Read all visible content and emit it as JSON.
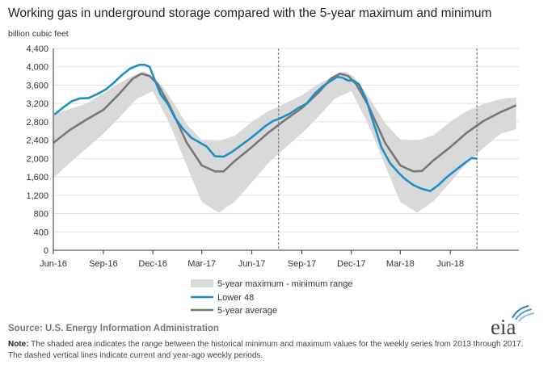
{
  "title": "Working gas in underground  storage compared with the 5-year maximum and minimum",
  "source": "Source:  U.S. Energy Information Administration",
  "note_label": "Note:",
  "note_text": " The shaded area indicates the range between the historical minimum and maximum values for the weekly series from 2013 through 2017. The dashed vertical lines indicate current and year-ago weekly periods.",
  "logo_text": "eia",
  "colors": {
    "range": "#d9d9d9",
    "lower48": "#1e8fc6",
    "avg": "#777777",
    "axis": "#333333",
    "dashed": "#888888"
  },
  "chart_data": {
    "type": "area",
    "ylabel": "billion cubic feet",
    "ylim": [
      0,
      4400
    ],
    "yticks": [
      0,
      400,
      800,
      1200,
      1600,
      2000,
      2400,
      2800,
      3200,
      3600,
      4000,
      4400
    ],
    "ytick_labels": [
      "0",
      "400",
      "800",
      "1,200",
      "1,600",
      "2,000",
      "2,400",
      "2,800",
      "3,200",
      "3,600",
      "4,000",
      "4,400"
    ],
    "xlim": [
      "2016-06-01",
      "2018-10-05"
    ],
    "xticks": [
      "2016-06-01",
      "2016-09-01",
      "2016-12-01",
      "2017-03-01",
      "2017-06-01",
      "2017-09-01",
      "2017-12-01",
      "2018-03-01",
      "2018-06-01"
    ],
    "xtick_labels": [
      "Jun-16",
      "Sep-16",
      "Dec-16",
      "Mar-17",
      "Jun-17",
      "Sep-17",
      "Dec-17",
      "Mar-18",
      "Jun-18"
    ],
    "dashed_lines": [
      "2017-07-20",
      "2018-07-20"
    ],
    "legend": [
      {
        "key": "range",
        "label": "5-year maximum - minimum range"
      },
      {
        "key": "lower48",
        "label": "Lower 48"
      },
      {
        "key": "avg",
        "label": "5-year average"
      }
    ],
    "range_max": {
      "x": [
        "2016-06-01",
        "2016-07-01",
        "2016-08-01",
        "2016-09-01",
        "2016-10-01",
        "2016-10-25",
        "2016-11-15",
        "2016-12-01",
        "2016-12-20",
        "2017-01-10",
        "2017-02-01",
        "2017-03-01",
        "2017-04-01",
        "2017-05-01",
        "2017-06-01",
        "2017-07-01",
        "2017-08-01",
        "2017-09-01",
        "2017-10-01",
        "2017-11-01",
        "2017-11-20",
        "2017-12-05",
        "2017-12-20",
        "2018-01-10",
        "2018-02-01",
        "2018-03-01",
        "2018-04-01",
        "2018-05-01",
        "2018-06-01",
        "2018-07-01",
        "2018-08-01",
        "2018-09-01",
        "2018-09-30"
      ],
      "y": [
        2960,
        3080,
        3200,
        3420,
        3650,
        3800,
        3900,
        3780,
        3560,
        3180,
        2750,
        2400,
        2380,
        2500,
        2800,
        3030,
        3200,
        3380,
        3620,
        3810,
        3900,
        3790,
        3560,
        3190,
        2770,
        2410,
        2390,
        2510,
        2800,
        3030,
        3190,
        3300,
        3330
      ]
    },
    "range_min": {
      "x": [
        "2016-06-01",
        "2016-07-01",
        "2016-08-01",
        "2016-09-01",
        "2016-10-01",
        "2016-11-01",
        "2016-12-01",
        "2017-01-01",
        "2017-02-01",
        "2017-03-01",
        "2017-04-01",
        "2017-05-01",
        "2017-06-01",
        "2017-07-01",
        "2017-08-01",
        "2017-09-01",
        "2017-10-01",
        "2017-11-01",
        "2017-12-01",
        "2018-01-01",
        "2018-02-01",
        "2018-03-01",
        "2018-04-01",
        "2018-05-01",
        "2018-06-01",
        "2018-07-01",
        "2018-08-01",
        "2018-09-01",
        "2018-09-30"
      ],
      "y": [
        1580,
        1900,
        2220,
        2540,
        2900,
        3300,
        3470,
        2750,
        1850,
        1050,
        820,
        1060,
        1480,
        1900,
        2230,
        2550,
        2910,
        3310,
        3470,
        2750,
        1850,
        1050,
        820,
        1070,
        1480,
        1900,
        2230,
        2540,
        2640
      ]
    },
    "series": [
      {
        "name": "Lower 48",
        "key": "lower48",
        "x": [
          "2016-06-03",
          "2016-06-20",
          "2016-07-05",
          "2016-07-20",
          "2016-08-05",
          "2016-08-20",
          "2016-09-05",
          "2016-09-20",
          "2016-10-05",
          "2016-10-20",
          "2016-11-05",
          "2016-11-15",
          "2016-11-25",
          "2016-12-05",
          "2016-12-15",
          "2016-12-28",
          "2017-01-10",
          "2017-01-25",
          "2017-02-10",
          "2017-02-25",
          "2017-03-10",
          "2017-03-25",
          "2017-04-10",
          "2017-04-25",
          "2017-05-10",
          "2017-05-25",
          "2017-06-10",
          "2017-06-25",
          "2017-07-10",
          "2017-07-20",
          "2017-08-10",
          "2017-08-25",
          "2017-09-10",
          "2017-09-25",
          "2017-10-10",
          "2017-10-25",
          "2017-11-05",
          "2017-11-15",
          "2017-11-25",
          "2017-12-05",
          "2017-12-15",
          "2017-12-28",
          "2018-01-10",
          "2018-01-25",
          "2018-02-10",
          "2018-02-25",
          "2018-03-10",
          "2018-03-25",
          "2018-04-10",
          "2018-04-25",
          "2018-05-10",
          "2018-05-25",
          "2018-06-10",
          "2018-06-25",
          "2018-07-10",
          "2018-07-20"
        ],
        "y": [
          2960,
          3120,
          3250,
          3310,
          3320,
          3400,
          3500,
          3650,
          3820,
          3960,
          4040,
          4047,
          4000,
          3700,
          3400,
          3200,
          2900,
          2650,
          2450,
          2350,
          2260,
          2050,
          2040,
          2140,
          2270,
          2400,
          2550,
          2700,
          2820,
          2860,
          2980,
          3100,
          3200,
          3420,
          3580,
          3700,
          3780,
          3760,
          3700,
          3700,
          3620,
          3300,
          2800,
          2250,
          1900,
          1700,
          1550,
          1420,
          1340,
          1290,
          1420,
          1590,
          1740,
          1880,
          2010,
          2000
        ]
      },
      {
        "name": "5-year average",
        "key": "avg",
        "x": [
          "2016-06-01",
          "2016-07-01",
          "2016-08-01",
          "2016-09-01",
          "2016-10-01",
          "2016-10-25",
          "2016-11-10",
          "2016-11-25",
          "2016-12-10",
          "2017-01-01",
          "2017-02-01",
          "2017-03-01",
          "2017-03-25",
          "2017-04-10",
          "2017-05-01",
          "2017-06-01",
          "2017-07-01",
          "2017-08-01",
          "2017-09-01",
          "2017-10-01",
          "2017-10-25",
          "2017-11-10",
          "2017-11-25",
          "2017-12-10",
          "2018-01-01",
          "2018-02-01",
          "2018-03-01",
          "2018-03-25",
          "2018-04-10",
          "2018-05-01",
          "2018-06-01",
          "2018-07-01",
          "2018-08-01",
          "2018-09-01",
          "2018-09-30"
        ],
        "y": [
          2340,
          2620,
          2850,
          3060,
          3420,
          3740,
          3850,
          3800,
          3620,
          3150,
          2350,
          1850,
          1720,
          1720,
          1950,
          2250,
          2560,
          2840,
          3100,
          3430,
          3750,
          3850,
          3800,
          3620,
          3160,
          2340,
          1850,
          1720,
          1730,
          1960,
          2250,
          2560,
          2820,
          3010,
          3160
        ]
      }
    ]
  }
}
